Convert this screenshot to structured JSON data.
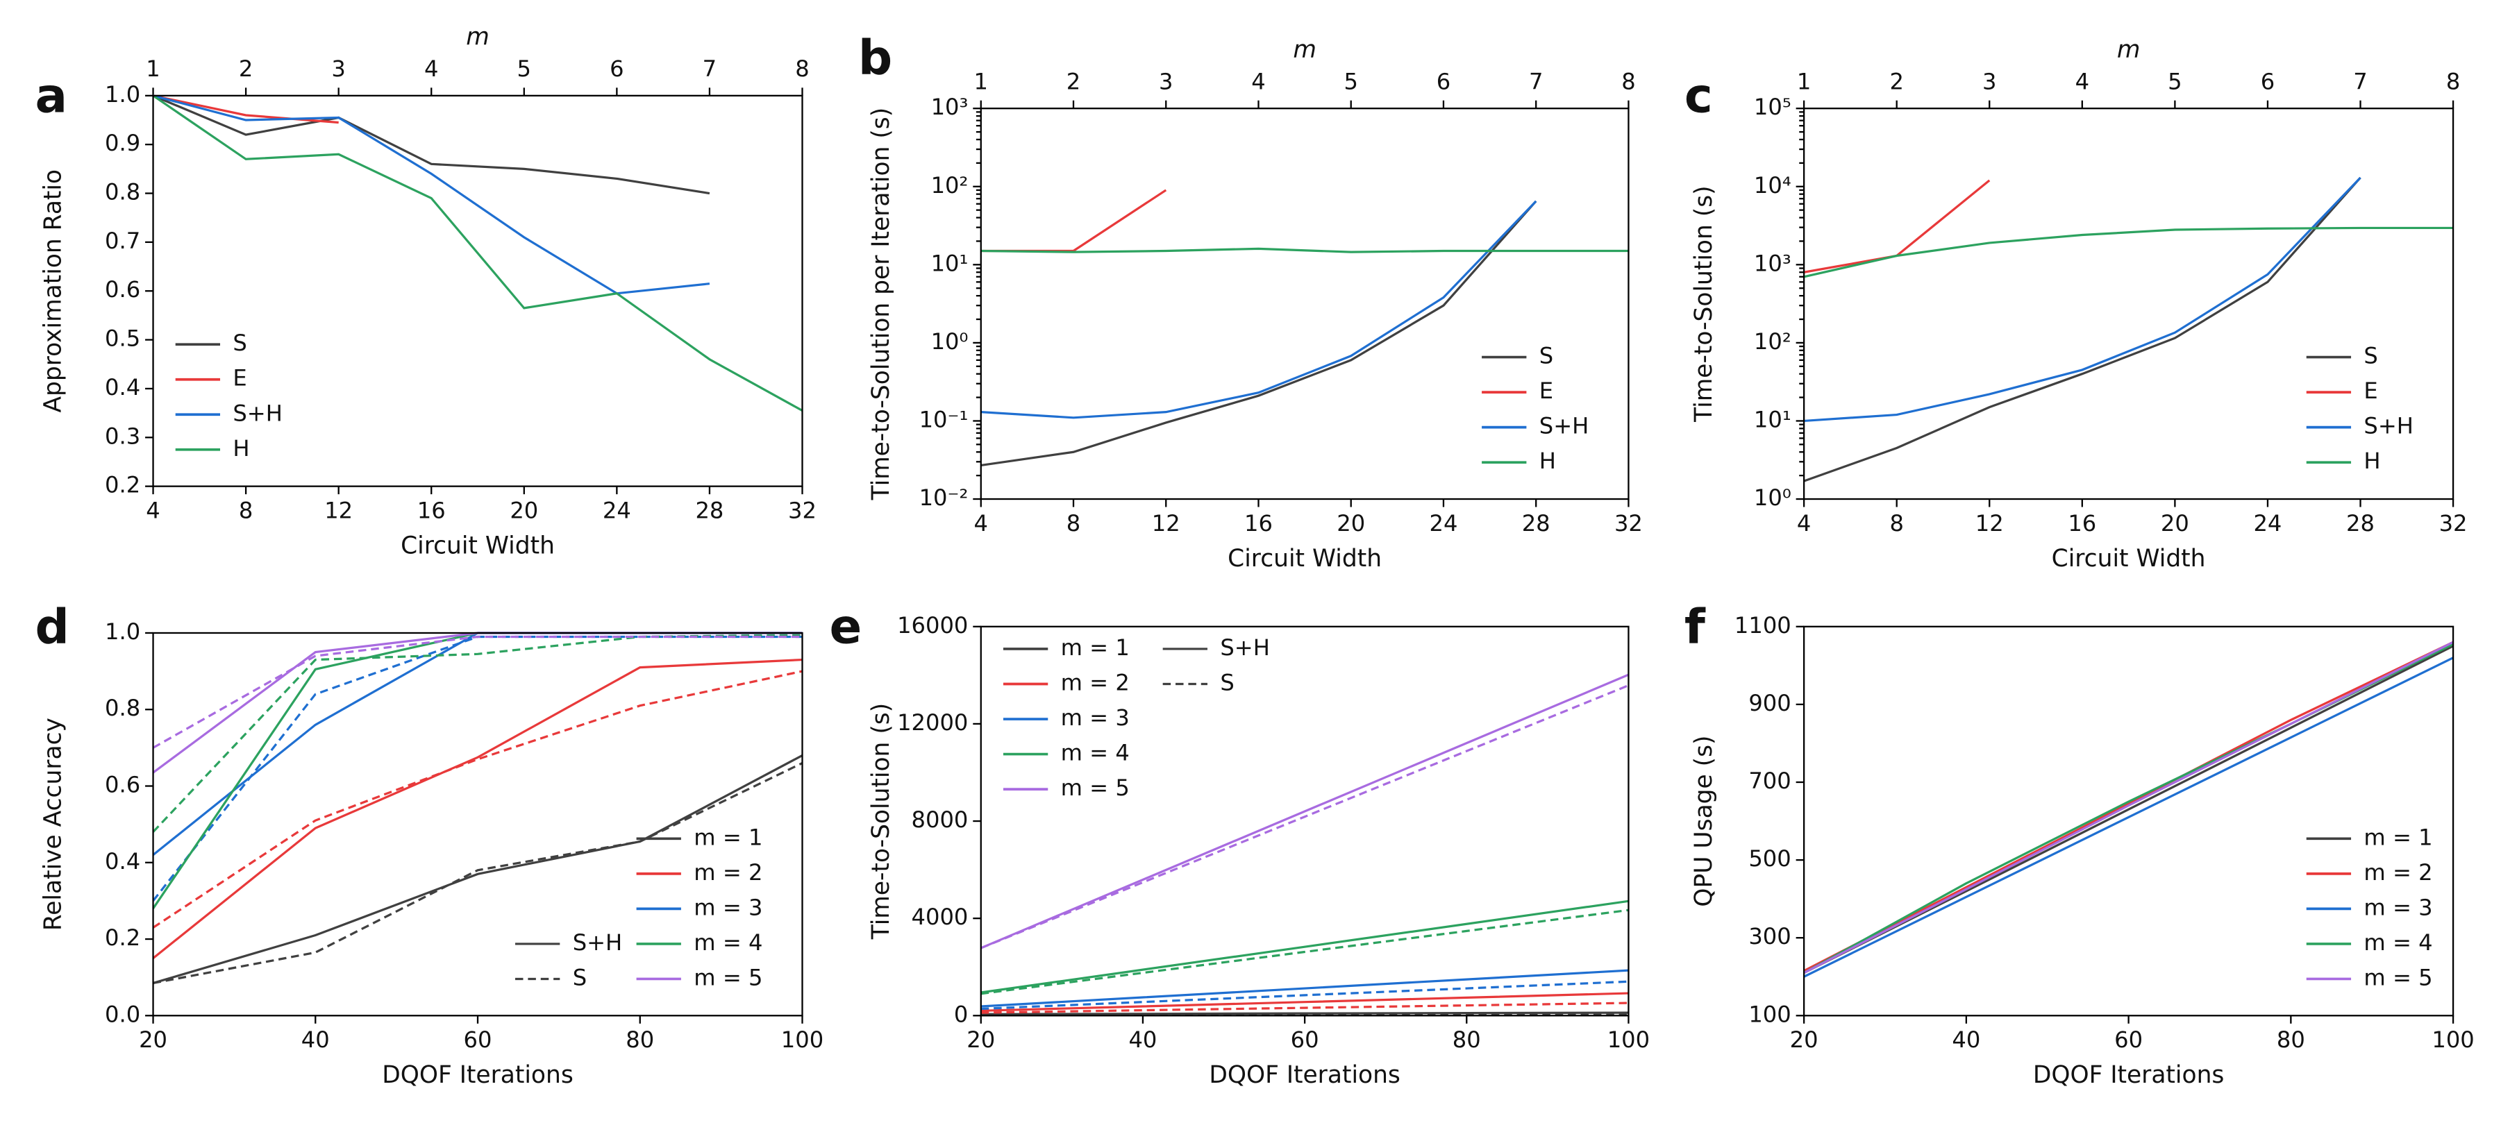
{
  "chart_data": [
    {
      "type": "line",
      "panel": "a",
      "xlabel": "Circuit Width",
      "ylabel": "Approximation Ratio",
      "x2label": "m",
      "x": [
        4,
        8,
        12,
        16,
        20,
        24,
        28,
        32
      ],
      "series": [
        {
          "name": "S",
          "color": "#404040",
          "values": [
            1.0,
            0.92,
            0.955,
            0.86,
            0.85,
            0.83,
            0.8,
            null
          ]
        },
        {
          "name": "E",
          "color": "#e8393a",
          "values": [
            1.0,
            0.96,
            0.945,
            null,
            null,
            null,
            null,
            null
          ]
        },
        {
          "name": "S+H",
          "color": "#1f6fd1",
          "values": [
            1.0,
            0.95,
            0.955,
            0.84,
            0.71,
            0.595,
            0.615,
            null
          ]
        },
        {
          "name": "H",
          "color": "#2ca25f",
          "values": [
            1.0,
            0.87,
            0.88,
            0.79,
            0.565,
            0.595,
            0.46,
            0.355
          ]
        }
      ],
      "xlim": [
        4,
        32
      ],
      "xticks": [
        4,
        8,
        12,
        16,
        20,
        24,
        28,
        32
      ],
      "ylim": [
        0.2,
        1.0
      ],
      "yticks": [
        0.2,
        0.3,
        0.4,
        0.5,
        0.6,
        0.7,
        0.8,
        0.9,
        {
          "value": 1.0,
          "label": "1.0"
        }
      ],
      "x2lim": [
        1,
        8
      ],
      "x2ticks": [
        1,
        2,
        3,
        4,
        5,
        6,
        7,
        8
      ],
      "legend": "lower left"
    },
    {
      "type": "line",
      "panel": "b",
      "xlabel": "Circuit Width",
      "ylabel": "Time-to-Solution per Iteration (s)",
      "x2label": "m",
      "x": [
        4,
        8,
        12,
        16,
        20,
        24,
        28,
        32
      ],
      "series": [
        {
          "name": "S",
          "color": "#404040",
          "values": [
            0.027,
            0.04,
            0.095,
            0.21,
            0.6,
            3,
            65,
            null
          ]
        },
        {
          "name": "E",
          "color": "#e8393a",
          "values": [
            15,
            15,
            90,
            null,
            null,
            null,
            null,
            null
          ]
        },
        {
          "name": "S+H",
          "color": "#1f6fd1",
          "values": [
            0.13,
            0.11,
            0.13,
            0.23,
            0.68,
            3.8,
            65,
            null
          ]
        },
        {
          "name": "H",
          "color": "#2ca25f",
          "values": [
            15,
            14.5,
            15,
            16,
            14.5,
            15,
            15,
            15
          ]
        }
      ],
      "xlim": [
        4,
        32
      ],
      "xticks": [
        4,
        8,
        12,
        16,
        20,
        24,
        28,
        32
      ],
      "log": true,
      "ylim": [
        0.01,
        1000
      ],
      "yticks": [
        {
          "value": 0.01,
          "label": "10⁻²"
        },
        {
          "value": 0.1,
          "label": "10⁻¹"
        },
        {
          "value": 1,
          "label": "10⁰"
        },
        {
          "value": 10,
          "label": "10¹"
        },
        {
          "value": 100,
          "label": "10²"
        },
        {
          "value": 1000,
          "label": "10³"
        }
      ],
      "x2lim": [
        1,
        8
      ],
      "x2ticks": [
        1,
        2,
        3,
        4,
        5,
        6,
        7,
        8
      ],
      "legend": "lower right"
    },
    {
      "type": "line",
      "panel": "c",
      "xlabel": "Circuit Width",
      "ylabel": "Time-to-Solution (s)",
      "x2label": "m",
      "x": [
        4,
        8,
        12,
        16,
        20,
        24,
        28,
        32
      ],
      "series": [
        {
          "name": "S",
          "color": "#404040",
          "values": [
            1.7,
            4.5,
            15,
            40,
            115,
            600,
            13000,
            null
          ]
        },
        {
          "name": "E",
          "color": "#e8393a",
          "values": [
            800,
            1300,
            12000,
            null,
            null,
            null,
            null,
            null
          ]
        },
        {
          "name": "S+H",
          "color": "#1f6fd1",
          "values": [
            10,
            12,
            22,
            45,
            135,
            750,
            13000,
            null
          ]
        },
        {
          "name": "H",
          "color": "#2ca25f",
          "values": [
            700,
            1300,
            1900,
            2400,
            2800,
            2900,
            2950,
            2950
          ]
        }
      ],
      "xlim": [
        4,
        32
      ],
      "xticks": [
        4,
        8,
        12,
        16,
        20,
        24,
        28,
        32
      ],
      "log": true,
      "ylim": [
        1,
        100000
      ],
      "yticks": [
        {
          "value": 1,
          "label": "10⁰"
        },
        {
          "value": 10,
          "label": "10¹"
        },
        {
          "value": 100,
          "label": "10²"
        },
        {
          "value": 1000,
          "label": "10³"
        },
        {
          "value": 10000,
          "label": "10⁴"
        },
        {
          "value": 100000,
          "label": "10⁵"
        }
      ],
      "x2lim": [
        1,
        8
      ],
      "x2ticks": [
        1,
        2,
        3,
        4,
        5,
        6,
        7,
        8
      ],
      "legend": "lower right"
    },
    {
      "type": "line",
      "panel": "d",
      "xlabel": "DQOF Iterations",
      "ylabel": "Relative Accuracy",
      "x": [
        20,
        40,
        60,
        80,
        100
      ],
      "styles": [
        {
          "name": "S+H",
          "dash": null
        },
        {
          "name": "S",
          "dash": "5 3"
        }
      ],
      "series": [
        {
          "name": "m = 1",
          "color": "#404040",
          "values": [
            [
              0.085,
              0.21,
              0.37,
              0.455,
              0.68
            ],
            [
              0.085,
              0.165,
              0.38,
              0.455,
              0.66
            ]
          ]
        },
        {
          "name": "m = 2",
          "color": "#e8393a",
          "values": [
            [
              0.15,
              0.49,
              0.675,
              0.91,
              0.93
            ],
            [
              0.23,
              0.51,
              0.67,
              0.81,
              0.9
            ]
          ]
        },
        {
          "name": "m = 3",
          "color": "#1f6fd1",
          "values": [
            [
              0.42,
              0.76,
              1.0,
              1.0,
              1.0
            ],
            [
              0.3,
              0.84,
              0.99,
              0.99,
              0.99
            ]
          ]
        },
        {
          "name": "m = 4",
          "color": "#2ca25f",
          "values": [
            [
              0.28,
              0.905,
              1.0,
              1.0,
              1.0
            ],
            [
              0.48,
              0.93,
              0.945,
              0.99,
              0.995
            ]
          ]
        },
        {
          "name": "m = 5",
          "color": "#a86be0",
          "values": [
            [
              0.635,
              0.95,
              1.0,
              1.0,
              1.0
            ],
            [
              0.7,
              0.94,
              0.99,
              0.99,
              0.99
            ]
          ]
        }
      ],
      "xlim": [
        20,
        100
      ],
      "xticks": [
        20,
        40,
        60,
        80,
        100
      ],
      "ylim": [
        0,
        1
      ],
      "yticks": [
        {
          "value": 0,
          "label": "0.0"
        },
        0.2,
        0.4,
        0.6,
        0.8,
        {
          "value": 1,
          "label": "1.0"
        }
      ],
      "legend": "lower right"
    },
    {
      "type": "line",
      "panel": "e",
      "xlabel": "DQOF Iterations",
      "ylabel": "Time-to-Solution (s)",
      "x": [
        20,
        40,
        60,
        80,
        100
      ],
      "styles": [
        {
          "name": "S+H",
          "dash": null
        },
        {
          "name": "S",
          "dash": "5 3"
        }
      ],
      "series": [
        {
          "name": "m = 1",
          "color": "#404040",
          "values": [
            [
              60,
              75,
              90,
              105,
              120
            ],
            [
              30,
              40,
              50,
              60,
              70
            ]
          ]
        },
        {
          "name": "m = 2",
          "color": "#e8393a",
          "values": [
            [
              200,
              380,
              560,
              740,
              920
            ],
            [
              120,
              220,
              320,
              420,
              520
            ]
          ]
        },
        {
          "name": "m = 3",
          "color": "#1f6fd1",
          "values": [
            [
              380,
              750,
              1120,
              1490,
              1860
            ],
            [
              280,
              560,
              840,
              1120,
              1400
            ]
          ]
        },
        {
          "name": "m = 4",
          "color": "#2ca25f",
          "values": [
            [
              950,
              1890,
              2830,
              3770,
              4710
            ],
            [
              900,
              1760,
              2620,
              3480,
              4340
            ]
          ]
        },
        {
          "name": "m = 5",
          "color": "#a86be0",
          "values": [
            [
              2780,
              5590,
              8400,
              11210,
              14020
            ],
            [
              2780,
              5480,
              8180,
              10880,
              13580
            ]
          ]
        }
      ],
      "xlim": [
        20,
        100
      ],
      "xticks": [
        20,
        40,
        60,
        80,
        100
      ],
      "ylim": [
        0,
        16000
      ],
      "yticks": [
        0,
        4000,
        8000,
        12000,
        16000
      ],
      "legend": "upper left"
    },
    {
      "type": "line",
      "panel": "f",
      "xlabel": "DQOF Iterations",
      "ylabel": "QPU Usage (s)",
      "x": [
        20,
        40,
        60,
        80,
        100
      ],
      "series": [
        {
          "name": "m = 1",
          "color": "#404040",
          "values": [
            210,
            420,
            630,
            840,
            1050
          ]
        },
        {
          "name": "m = 2",
          "color": "#e8393a",
          "values": [
            215,
            430,
            645,
            860,
            1060
          ]
        },
        {
          "name": "m = 3",
          "color": "#1f6fd1",
          "values": [
            200,
            405,
            610,
            815,
            1020
          ]
        },
        {
          "name": "m = 4",
          "color": "#2ca25f",
          "values": [
            210,
            440,
            650,
            850,
            1055
          ]
        },
        {
          "name": "m = 5",
          "color": "#a86be0",
          "values": [
            210,
            425,
            640,
            850,
            1060
          ]
        }
      ],
      "xlim": [
        20,
        100
      ],
      "xticks": [
        20,
        40,
        60,
        80,
        100
      ],
      "ylim": [
        100,
        1100
      ],
      "yticks": [
        100,
        300,
        500,
        700,
        900,
        1100
      ],
      "legend": "lower right"
    }
  ]
}
